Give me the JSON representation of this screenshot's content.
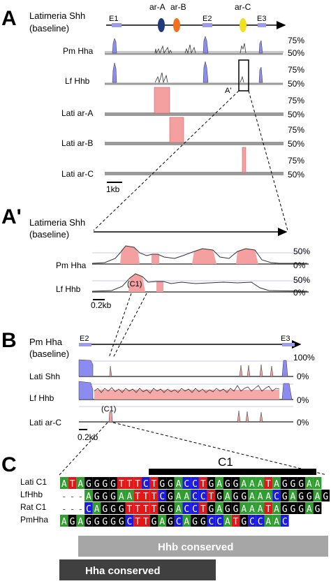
{
  "panels": {
    "A": {
      "letter": "A",
      "baseline_label": [
        "Latimeria Shh",
        "(baseline)"
      ],
      "features": [
        {
          "name": "E1",
          "kind": "exon"
        },
        {
          "name": "ar-A",
          "kind": "enhancer",
          "color": "#1f3a7a"
        },
        {
          "name": "ar-B",
          "kind": "enhancer",
          "color": "#f07020"
        },
        {
          "name": "E2",
          "kind": "exon"
        },
        {
          "name": "ar-C",
          "kind": "enhancer",
          "color": "#f0e020"
        },
        {
          "name": "E3",
          "kind": "exon"
        }
      ],
      "tracks": [
        "Pm Hha",
        "Lf Hhb",
        "Lati ar-A",
        "Lati ar-B",
        "Lati ar-C"
      ],
      "pct_labels": [
        "75%",
        "50%"
      ],
      "box_label": "A'",
      "scale": "1kb"
    },
    "A2": {
      "letter": "A'",
      "baseline_label": [
        "Latimeria Shh",
        "(baseline)"
      ],
      "tracks": [
        "Pm Hha",
        "Lf Hhb"
      ],
      "pct_labels": [
        "50%",
        "0%"
      ],
      "annotation": "(C1)",
      "scale": "0.2kb"
    },
    "B": {
      "letter": "B",
      "baseline_label": [
        "Pm Hha",
        "(baseline)"
      ],
      "features": [
        "E2",
        "E3"
      ],
      "tracks": [
        "Lati Shh",
        "Lf Hhb",
        "Lati ar-C"
      ],
      "pct_labels": [
        "100%",
        "0%",
        "0%",
        "0%"
      ],
      "annotation": "(C1)",
      "scale": "0.2kb"
    },
    "C": {
      "letter": "C",
      "region_label": "C1",
      "rows": [
        {
          "name": "Lati C1",
          "seq": "ATAGGGGTTTCTGGACCTGAGGAAATAGGGAA"
        },
        {
          "name": "LfHhb",
          "seq": "---AGGGAATTTCGAACCTGAGGAAACGAGGAG"
        },
        {
          "name": "Rat C1",
          "seq": "---CAGGGTTTTGGACCTGAGGAAATAGGGAG"
        },
        {
          "name": "PmHha",
          "seq": "AGAGGGGGCTTGAGCAGGCCATGCCAAC"
        }
      ],
      "hhb_label": "Hhb conserved",
      "hha_label": "Hha conserved"
    }
  },
  "colors": {
    "blue_peak": "#8c8cf0",
    "pink_region": "#f4a0a0",
    "track_gray": "#9a9a9a",
    "A": "#2e9e2e",
    "C": "#1a1ae0",
    "G": "#000000",
    "T": "#e01818",
    "hhb_bar": "#a6a6a6",
    "hha_bar": "#404040"
  }
}
